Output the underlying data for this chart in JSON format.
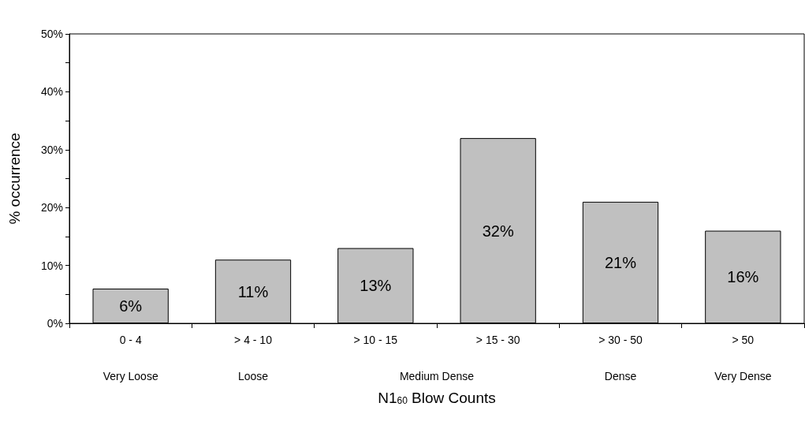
{
  "chart_data": {
    "type": "bar",
    "xlabel": "N1$_{60}$ Blow Counts",
    "ylabel": "% occurrence",
    "categories": [
      "0 - 4",
      "> 4 - 10",
      "> 10 - 15",
      "> 15 - 30",
      "> 30 - 50",
      "> 50"
    ],
    "values": [
      6,
      11,
      13,
      32,
      21,
      16
    ],
    "color": "#c0c0c0",
    "data_labels": true,
    "value_labels": [
      "6%",
      "11%",
      "13%",
      "32%",
      "21%",
      "16%"
    ],
    "ylim": [
      0,
      50
    ],
    "yticks": [
      {
        "value": 0,
        "label": "0%"
      },
      {
        "value": 5,
        "label": null
      },
      {
        "value": 10,
        "label": "10%"
      },
      {
        "value": 15,
        "label": null
      },
      {
        "value": 20,
        "label": "20%"
      },
      {
        "value": 25,
        "label": null
      },
      {
        "value": 30,
        "label": "30%"
      },
      {
        "value": 35,
        "label": null
      },
      {
        "value": 40,
        "label": "40%"
      },
      {
        "value": 45,
        "label": null
      },
      {
        "value": 50,
        "label": "50%"
      }
    ],
    "grid": false,
    "annotations": [
      "Very Loose",
      "Loose",
      "Medium Dense",
      "Dense",
      "Very Dense"
    ]
  }
}
